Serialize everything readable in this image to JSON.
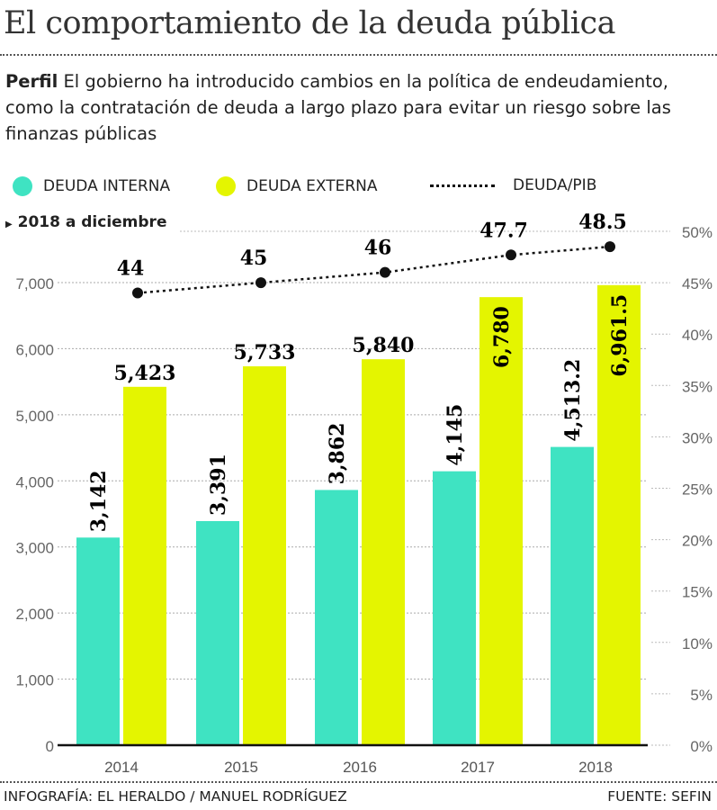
{
  "header": {
    "title": "El comportamiento de la deuda pública",
    "subtitle_lead": "Perfil",
    "subtitle": " El gobierno ha introducido cambios en la política de endeudamiento, como la contratación de deuda a largo plazo para evitar un riesgo sobre las finanzas públicas"
  },
  "note": "2018 a diciembre",
  "footer": {
    "credit": "INFOGRAFÍA: EL HERALDO / MANUEL RODRÍGUEZ",
    "source": "FUENTE: SEFIN"
  },
  "chart_data": {
    "type": "bar",
    "categories": [
      "2014",
      "2015",
      "2016",
      "2017",
      "2018"
    ],
    "series": [
      {
        "name": "DEUDA INTERNA",
        "color": "#3fe3c2",
        "values": [
          3142,
          3391,
          3862,
          4145,
          4513.2
        ],
        "labels": [
          "3,142",
          "3,391",
          "3,862",
          "4,145",
          "4,513.2"
        ],
        "axis": "left"
      },
      {
        "name": "DEUDA EXTERNA",
        "color": "#e4f500",
        "values": [
          5423,
          5733,
          5840,
          6780,
          6961.5
        ],
        "labels": [
          "5,423",
          "5,733",
          "5,840",
          "6,780",
          "6,961.5"
        ],
        "axis": "left"
      },
      {
        "name": "DEUDA/PIB",
        "type": "line",
        "style": "dotted",
        "color": "#111111",
        "values": [
          44,
          45,
          46,
          47.7,
          48.5
        ],
        "labels": [
          "44",
          "45",
          "46",
          "47.7",
          "48.5"
        ],
        "axis": "right"
      }
    ],
    "left_axis": {
      "ylim": [
        0,
        7000
      ],
      "ticks": [
        "0",
        "1,000",
        "2,000",
        "3,000",
        "4,000",
        "5,000",
        "6,000",
        "7,000"
      ]
    },
    "right_axis": {
      "ylim": [
        0,
        50
      ],
      "ticks": [
        "0%",
        "5%",
        "10%",
        "15%",
        "20%",
        "25%",
        "30%",
        "35%",
        "40%",
        "45%",
        "50%"
      ]
    },
    "grid": true,
    "legend": "top"
  }
}
